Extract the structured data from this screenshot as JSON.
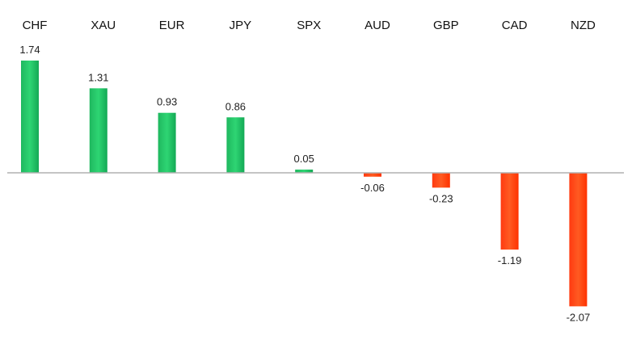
{
  "chart_data": {
    "type": "bar",
    "categories": [
      "CHF",
      "XAU",
      "EUR",
      "JPY",
      "SPX",
      "AUD",
      "GBP",
      "CAD",
      "NZD"
    ],
    "values": [
      1.74,
      1.31,
      0.93,
      0.86,
      0.05,
      -0.06,
      -0.23,
      -1.19,
      -2.07
    ],
    "value_labels": [
      "1.74",
      "1.31",
      "0.93",
      "0.86",
      "0.05",
      "-0.06",
      "-0.23",
      "-1.19",
      "-2.07"
    ],
    "title": "",
    "xlabel": "",
    "ylabel": "",
    "ylim": [
      -2.07,
      1.74
    ],
    "grid": false,
    "legend": "none",
    "colors": {
      "positive_top": "#2ecc71",
      "positive_bottom": "#0fa958",
      "negative_top": "#ff5a1f",
      "negative_bottom": "#ff2a00",
      "axis": "#b0b0b0"
    }
  }
}
